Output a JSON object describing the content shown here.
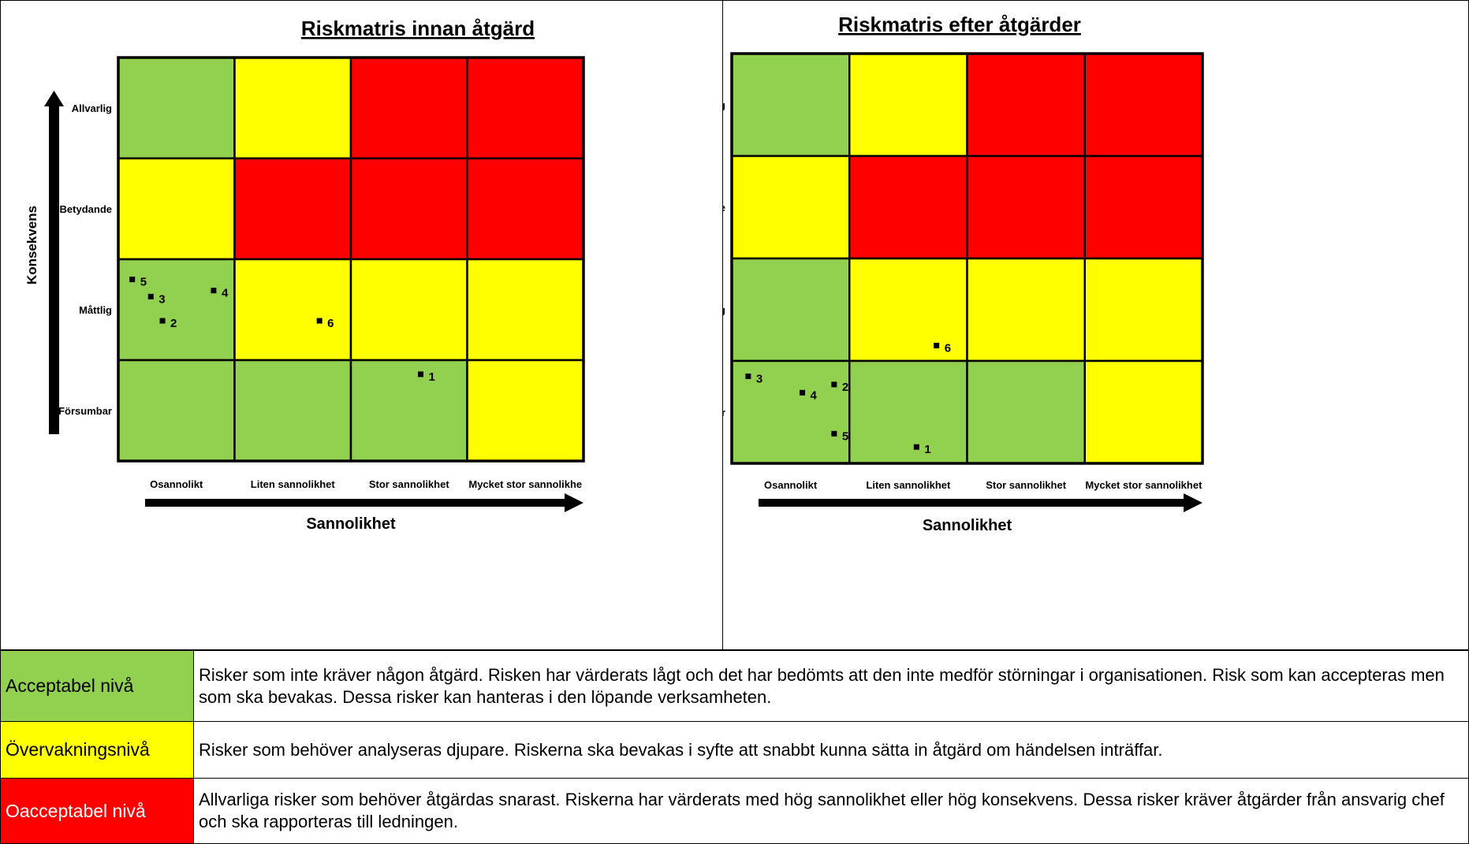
{
  "colors": {
    "green": "#92d050",
    "yellow": "#ffff00",
    "red": "#ff0000"
  },
  "chart_data": [
    {
      "type": "heatmap",
      "title": "Riskmatris innan åtgärd",
      "xlabel": "Sannolikhet",
      "ylabel": "Konsekvens",
      "x_categories": [
        "Osannolikt",
        "Liten sannolikhet",
        "Stor sannolikhet",
        "Mycket stor sannolikhe"
      ],
      "y_categories": [
        "Allvarlig",
        "Betydande",
        "Måttlig",
        "Försumbar"
      ],
      "cells": [
        [
          "green",
          "yellow",
          "red",
          "red"
        ],
        [
          "yellow",
          "red",
          "red",
          "red"
        ],
        [
          "green",
          "yellow",
          "yellow",
          "yellow"
        ],
        [
          "green",
          "green",
          "green",
          "yellow"
        ]
      ],
      "points": [
        {
          "label": "5",
          "x": 0.12,
          "y": 2.2
        },
        {
          "label": "3",
          "x": 0.28,
          "y": 2.37
        },
        {
          "label": "4",
          "x": 0.82,
          "y": 2.31
        },
        {
          "label": "2",
          "x": 0.38,
          "y": 2.61
        },
        {
          "label": "6",
          "x": 1.73,
          "y": 2.61
        },
        {
          "label": "1",
          "x": 2.6,
          "y": 3.14
        }
      ]
    },
    {
      "type": "heatmap",
      "title": "Riskmatris efter åtgärder",
      "xlabel": "Sannolikhet",
      "ylabel": "Konsekvens",
      "x_categories": [
        "Osannolikt",
        "Liten sannolikhet",
        "Stor sannolikhet",
        "Mycket stor sannolikhet"
      ],
      "y_categories": [
        "Allvarlig",
        "Betydande",
        "Måttlig",
        "Försumbar"
      ],
      "cells": [
        [
          "green",
          "yellow",
          "red",
          "red"
        ],
        [
          "yellow",
          "red",
          "red",
          "red"
        ],
        [
          "green",
          "yellow",
          "yellow",
          "yellow"
        ],
        [
          "green",
          "green",
          "green",
          "yellow"
        ]
      ],
      "points": [
        {
          "label": "3",
          "x": 0.14,
          "y": 3.15
        },
        {
          "label": "4",
          "x": 0.6,
          "y": 3.31
        },
        {
          "label": "2",
          "x": 0.87,
          "y": 3.23
        },
        {
          "label": "5",
          "x": 0.87,
          "y": 3.71
        },
        {
          "label": "6",
          "x": 1.74,
          "y": 2.85
        },
        {
          "label": "1",
          "x": 1.57,
          "y": 3.84
        }
      ]
    }
  ],
  "legend": [
    {
      "level": "Acceptabel nivå",
      "color": "green",
      "description": "Risker som inte kräver någon åtgärd. Risken har värderats lågt och det har bedömts att den inte medför störningar i organisationen. Risk som kan accepteras men som ska bevakas. Dessa risker kan hanteras i den löpande verksamheten."
    },
    {
      "level": "Övervakningsnivå",
      "color": "yellow",
      "description": "Risker som behöver analyseras djupare. Riskerna ska bevakas i syfte att snabbt kunna sätta in åtgärd om händelsen inträffar."
    },
    {
      "level": "Oacceptabel nivå",
      "color": "red",
      "description": "Allvarliga risker som behöver åtgärdas snarast. Riskerna har värderats med hög sannolikhet eller hög konsekvens. Dessa risker kräver åtgärder från ansvarig chef och ska rapporteras till ledningen."
    }
  ]
}
